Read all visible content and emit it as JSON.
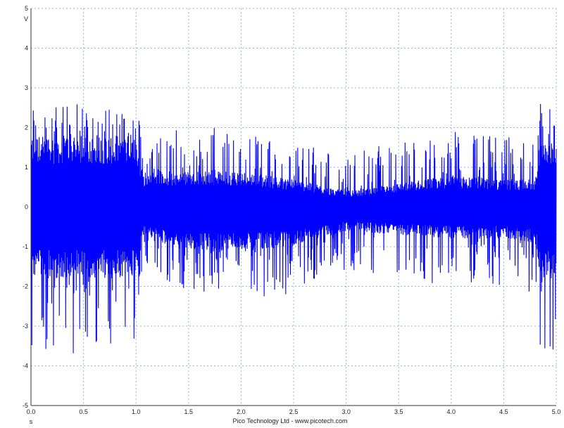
{
  "chart_data": {
    "type": "line",
    "title": "",
    "xlabel": "",
    "ylabel": "",
    "x_unit_label": "s",
    "y_unit_label": "V",
    "xlim": [
      0.0,
      5.0
    ],
    "ylim": [
      -5.0,
      5.0
    ],
    "x_ticks": [
      "0.0",
      "0.5",
      "1.0",
      "1.5",
      "2.0",
      "2.5",
      "3.0",
      "3.5",
      "4.0",
      "4.5",
      "5.0"
    ],
    "y_ticks": [
      "5",
      "4",
      "3",
      "2",
      "1",
      "0",
      "-1",
      "-2",
      "-3",
      "-4",
      "-5"
    ],
    "grid": true,
    "credit": "Pico Technology Ltd - www.picotech.com",
    "series": [
      {
        "color": "#0000ff",
        "envelope": [
          {
            "t": 0.0,
            "upper": 2.6,
            "lower": -3.7,
            "core_upper": 1.8,
            "core_lower": -1.8
          },
          {
            "t": 0.5,
            "upper": 2.6,
            "lower": -3.7,
            "core_upper": 1.8,
            "core_lower": -1.8
          },
          {
            "t": 1.0,
            "upper": 2.6,
            "lower": -3.7,
            "core_upper": 1.8,
            "core_lower": -1.8
          },
          {
            "t": 1.07,
            "upper": 1.7,
            "lower": -1.5,
            "core_upper": 0.8,
            "core_lower": -0.8
          },
          {
            "t": 1.5,
            "upper": 2.1,
            "lower": -2.2,
            "core_upper": 0.9,
            "core_lower": -1.1
          },
          {
            "t": 2.0,
            "upper": 2.0,
            "lower": -2.3,
            "core_upper": 0.9,
            "core_lower": -1.1
          },
          {
            "t": 2.5,
            "upper": 1.8,
            "lower": -2.2,
            "core_upper": 0.7,
            "core_lower": -1.0
          },
          {
            "t": 3.0,
            "upper": 1.3,
            "lower": -1.6,
            "core_upper": 0.4,
            "core_lower": -0.6
          },
          {
            "t": 3.5,
            "upper": 1.7,
            "lower": -1.8,
            "core_upper": 0.6,
            "core_lower": -0.7
          },
          {
            "t": 4.0,
            "upper": 1.9,
            "lower": -2.0,
            "core_upper": 0.8,
            "core_lower": -0.8
          },
          {
            "t": 4.5,
            "upper": 1.8,
            "lower": -2.0,
            "core_upper": 0.7,
            "core_lower": -0.8
          },
          {
            "t": 4.8,
            "upper": 1.9,
            "lower": -2.2,
            "core_upper": 0.7,
            "core_lower": -0.9
          },
          {
            "t": 4.85,
            "upper": 2.6,
            "lower": -3.7,
            "core_upper": 1.8,
            "core_lower": -1.8
          },
          {
            "t": 5.0,
            "upper": 2.6,
            "lower": -3.7,
            "core_upper": 1.8,
            "core_lower": -1.8
          }
        ]
      }
    ]
  }
}
